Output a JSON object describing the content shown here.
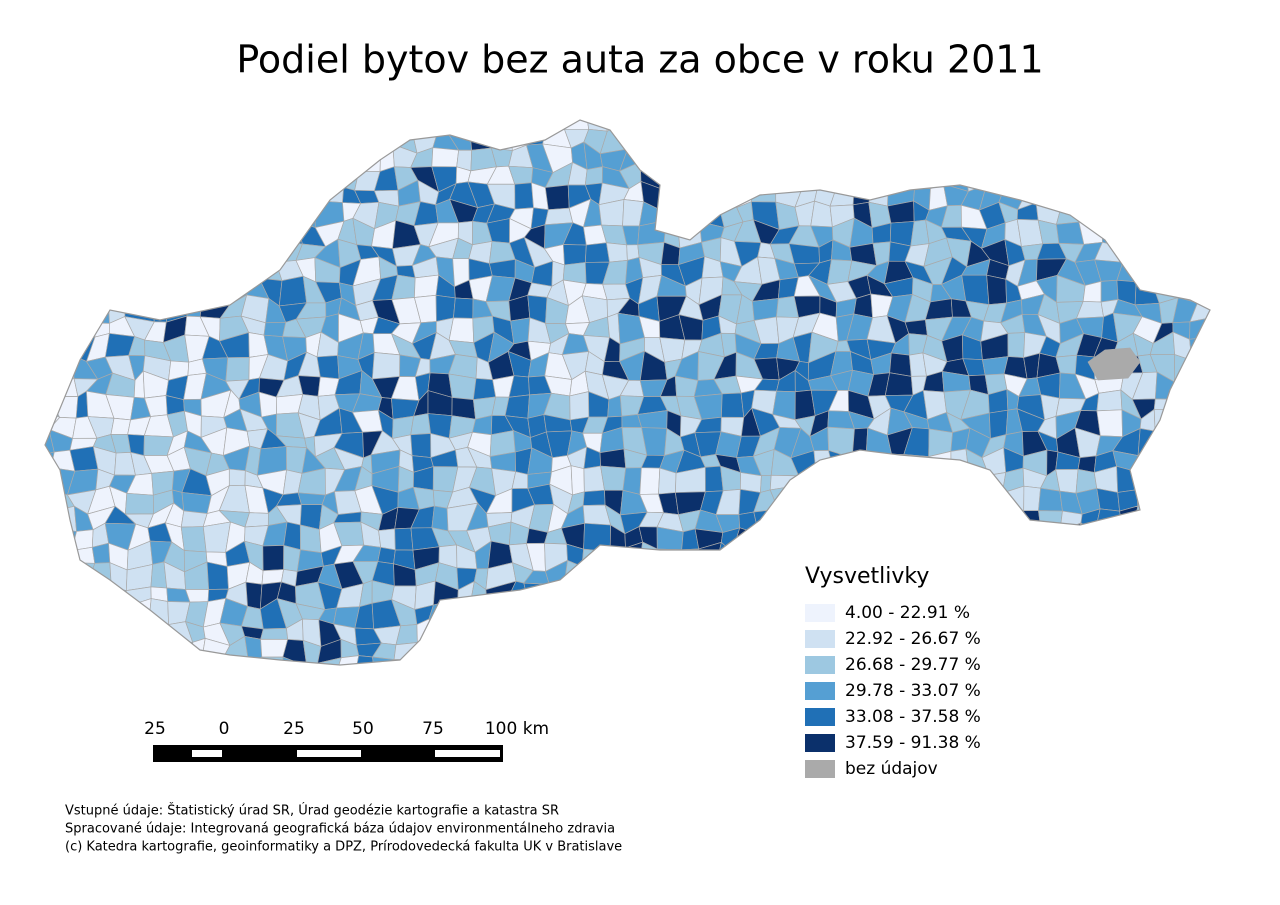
{
  "title": "Podiel bytov bez auta za obce v roku 2011",
  "legend": {
    "title": "Vysvetlivky",
    "items": [
      {
        "label": "4.00 - 22.91 %",
        "color": "#eef3fd"
      },
      {
        "label": "22.92 - 26.67 %",
        "color": "#cfe1f2"
      },
      {
        "label": "26.68 - 29.77 %",
        "color": "#9dc8e1"
      },
      {
        "label": "29.78 - 33.07 %",
        "color": "#559fd3"
      },
      {
        "label": "33.08 - 37.58 %",
        "color": "#2070b6"
      },
      {
        "label": "37.59 - 91.38 %",
        "color": "#0b306b"
      },
      {
        "label": "bez údajov",
        "color": "#aaaaaa"
      }
    ]
  },
  "scale_bar": {
    "labels": [
      "25",
      "0",
      "25",
      "50",
      "75",
      "100 km"
    ]
  },
  "credits": [
    "Vstupné údaje: Štatistický úrad SR, Úrad geodézie kartografie a katastra SR",
    "Spracované údaje: Integrovaná geografická báza údajov environmentálneho zdravia",
    "(c) Katedra kartografie, geoinformatiky a DPZ, Prírodovedecká fakulta UK v Bratislave"
  ]
}
